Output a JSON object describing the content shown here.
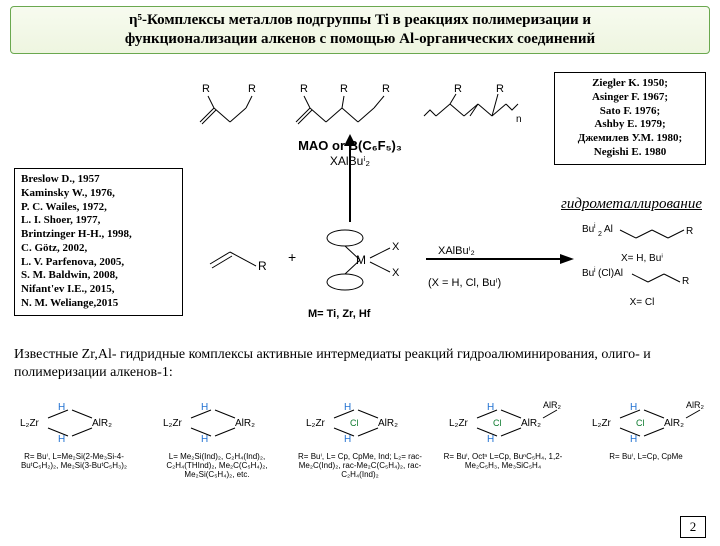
{
  "title_line1": "η⁵-Комплексы металлов подгруппы Ti в реакциях полимеризации и",
  "title_line2": "функционализации алкенов с помощью Al-органических соединений",
  "refs_right": [
    "Ziegler K. 1950;",
    "Asinger F. 1967;",
    "Sato F. 1976;",
    "Ashby E. 1979;",
    "Джемилев У.М. 1980;",
    "Negishi E. 1980"
  ],
  "refs_left": [
    "Breslow D., 1957",
    "Kaminsky W., 1976,",
    "P. C. Wailes, 1972,",
    "L. I. Shoer, 1977,",
    "Brintzinger H-H., 1998,",
    "C. Götz, 2002,",
    "L. V. Parfenova, 2005,",
    "S. M. Baldwin, 2008,",
    "Nifant'ev I.E., 2015,",
    "N. M. Weliange,2015"
  ],
  "hydrometal": "гидрометаллирование",
  "mao_line1": "MAO or B(C₆F₅)₃",
  "mao_line2": "XAlBuⁱ₂",
  "mid_metals": "M= Ti, Zr, Hf",
  "mid_x": "(X = H, Cl, Buⁱ)",
  "mid_reagent": "XAlBuⁱ₂",
  "prod1": "Buⁱ₂Al —\\— R",
  "prod1_cond": "X= H, Buⁱ",
  "prod2": "Buⁱ(Cl)Al —\\— R",
  "prod2_cond": "X= Cl",
  "known_text": "Известные Zr,Al- гидридные комплексы активные интермедиаты реакций гидроалюминирования, олиго- и полимеризации алкенов-1:",
  "complexes": [
    {
      "cap": "R= Buⁱ, L=Me₂Si(2-Me₃Si-4-BuᵗC₅H₂)₂, Me₂Si(3-BuᵗC₅H₃)₂"
    },
    {
      "cap": "L= Me₂Si(Ind)₂, C₂H₄(Ind)₂, C₂H₄(THInd)₂, Me₂C(C₅H₄)₂, Me₂Si(C₅H₄)₂, etc."
    },
    {
      "cap": "R= Buⁱ, L= Cp, CpMe, Ind; L₂= rac-Me₂C(Ind)₂, rac-Me₂C(C₅H₄)₂, rac-C₂H₄(Ind)₂"
    },
    {
      "cap": "R= Buⁱ, Octⁿ   L=Cp, BuⁿC₅H₄, 1,2-Me₂C₅H₃, Me₃SiC₅H₄"
    },
    {
      "cap": "R= Buⁱ, L=Cp, CpMe"
    }
  ],
  "page": "2",
  "colors": {
    "titleBorder": "#6aa84f",
    "H": "#1f6fd1",
    "Cl": "#0d7a2e"
  },
  "struct_labels": {
    "R": "R",
    "n": "n"
  }
}
